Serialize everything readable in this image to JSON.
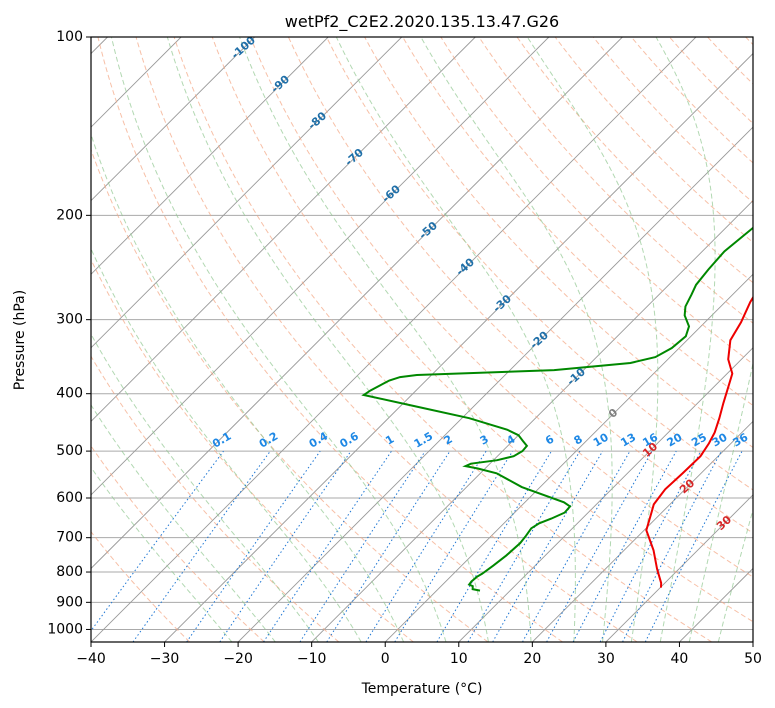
{
  "chart_data": {
    "type": "line",
    "title": "wetPf2_C2E2.2020.135.13.47.G26",
    "xlabel": "Temperature (°C)",
    "ylabel": "Pressure (hPa)",
    "xlim": [
      -40,
      50
    ],
    "ylim": [
      1050,
      100
    ],
    "y_scale": "log",
    "x_ticks": [
      "−40",
      "−30",
      "−20",
      "−10",
      "0",
      "10",
      "20",
      "30",
      "40",
      "50"
    ],
    "x_tick_values": [
      -40,
      -30,
      -20,
      -10,
      0,
      10,
      20,
      30,
      40,
      50
    ],
    "y_ticks": [
      "100",
      "200",
      "300",
      "400",
      "500",
      "600",
      "700",
      "800",
      "900",
      "1000"
    ],
    "y_tick_values": [
      100,
      200,
      300,
      400,
      500,
      600,
      700,
      800,
      900,
      1000
    ],
    "grid": true,
    "series": [
      {
        "name": "temperature",
        "color": "#ee0000",
        "points": [
          [
            30.1,
            850
          ],
          [
            29.5,
            835
          ],
          [
            27,
            790
          ],
          [
            24,
            735
          ],
          [
            20.3,
            680
          ],
          [
            18.8,
            640
          ],
          [
            17.8,
            615
          ],
          [
            17.3,
            580
          ],
          [
            17.5,
            545
          ],
          [
            17.6,
            510
          ],
          [
            17,
            485
          ],
          [
            16.3,
            465
          ],
          [
            15,
            440
          ],
          [
            13.5,
            415
          ],
          [
            12.3,
            395
          ],
          [
            10.7,
            370
          ],
          [
            8.2,
            350
          ],
          [
            5.9,
            325
          ],
          [
            4.9,
            303
          ],
          [
            3.4,
            280
          ],
          [
            2.5,
            262
          ],
          [
            0.6,
            235
          ],
          [
            -0.8,
            213
          ],
          [
            -1.4,
            200
          ],
          [
            -1.9,
            188
          ],
          [
            -1.5,
            180
          ],
          [
            -0.8,
            175
          ],
          [
            0.5,
            167
          ],
          [
            2.1,
            158
          ],
          [
            3.7,
            150
          ],
          [
            6.5,
            140
          ],
          [
            10.2,
            131
          ],
          [
            13.8,
            123
          ],
          [
            16.3,
            117
          ],
          [
            17.8,
            111
          ],
          [
            18.5,
            107
          ],
          [
            19.1,
            103
          ],
          [
            19.6,
            100
          ]
        ]
      },
      {
        "name": "dewpoint",
        "color": "#008800",
        "points": [
          [
            5.9,
            860
          ],
          [
            4.7,
            855
          ],
          [
            4.3,
            845
          ],
          [
            3.6,
            840
          ],
          [
            3.5,
            830
          ],
          [
            3.6,
            815
          ],
          [
            3.9,
            805
          ],
          [
            4.3,
            780
          ],
          [
            4.7,
            750
          ],
          [
            4.9,
            715
          ],
          [
            4.7,
            695
          ],
          [
            4.4,
            675
          ],
          [
            4.8,
            662
          ],
          [
            5.8,
            650
          ],
          [
            6.8,
            635
          ],
          [
            6.7,
            620
          ],
          [
            5.3,
            610
          ],
          [
            -2.5,
            575
          ],
          [
            -7.8,
            545
          ],
          [
            -11,
            535
          ],
          [
            -13,
            530
          ],
          [
            -12.6,
            525
          ],
          [
            -9.5,
            518
          ],
          [
            -7.8,
            510
          ],
          [
            -7.3,
            500
          ],
          [
            -7.4,
            490
          ],
          [
            -8.7,
            480
          ],
          [
            -10,
            470
          ],
          [
            -12.3,
            460
          ],
          [
            -19,
            440
          ],
          [
            -28,
            420
          ],
          [
            -36.5,
            402
          ],
          [
            -36.2,
            395
          ],
          [
            -35,
            380
          ],
          [
            -34,
            375
          ],
          [
            -32,
            372
          ],
          [
            -14,
            365
          ],
          [
            -4.6,
            355
          ],
          [
            -2,
            347
          ],
          [
            -1,
            335
          ],
          [
            -0.7,
            320
          ],
          [
            -1.6,
            308
          ],
          [
            -3.7,
            295
          ],
          [
            -4.8,
            285
          ],
          [
            -5.6,
            272
          ],
          [
            -6.3,
            262
          ],
          [
            -6.7,
            247
          ],
          [
            -7,
            230
          ],
          [
            -6.3,
            210
          ],
          [
            -5.2,
            195
          ],
          [
            -4.9,
            180
          ],
          [
            -5.1,
            165
          ],
          [
            -4.3,
            150
          ],
          [
            -4.2,
            140
          ],
          [
            -3.5,
            130
          ],
          [
            -2.8,
            120
          ],
          [
            -1.8,
            110
          ],
          [
            -0.7,
            103
          ],
          [
            0,
            100
          ]
        ]
      }
    ],
    "isotherm_labels": [
      "-100",
      "-90",
      "-80",
      "-70",
      "-60",
      "-50",
      "-40",
      "-30",
      "-20",
      "-10",
      "0",
      "10",
      "20",
      "30",
      "40"
    ],
    "isotherm_label_values": [
      -100,
      -90,
      -80,
      -70,
      -60,
      -50,
      -40,
      -30,
      -20,
      -10,
      0,
      10,
      20,
      30,
      40
    ],
    "mixing_ratio_labels": [
      "0.1",
      "0.2",
      "0.4",
      "0.6",
      "1",
      "1.5",
      "2",
      "3",
      "4",
      "6",
      "8",
      "10",
      "13",
      "16",
      "20",
      "25",
      "30",
      "36"
    ],
    "mixing_ratio_values": [
      0.1,
      0.2,
      0.4,
      0.6,
      1,
      1.5,
      2,
      3,
      4,
      6,
      8,
      10,
      13,
      16,
      20,
      25,
      30,
      36
    ],
    "colors": {
      "isotherm": "#999999",
      "isobar": "#aaaaaa",
      "dry_adiabat": "#f4a582",
      "moist_adiabat": "#92c792",
      "mixing_ratio": "#1f77d4",
      "label_cold": "#1f6fa8",
      "label_warm": "#d62728",
      "label_zero": "#808080",
      "mr_label": "#1e88e5"
    }
  }
}
